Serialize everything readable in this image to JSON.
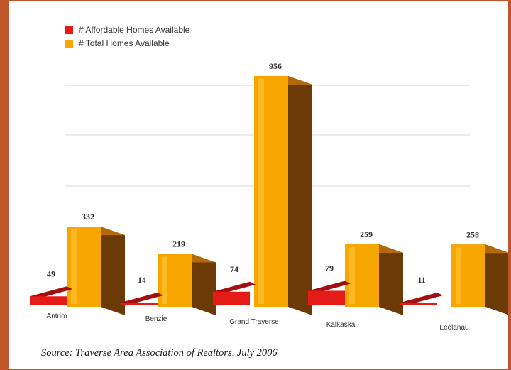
{
  "chart_data": {
    "type": "bar",
    "title": "",
    "xlabel": "",
    "ylabel": "",
    "ylim": [
      0,
      1000
    ],
    "grid": true,
    "legend_position": "top-left",
    "categories": [
      "Antrim",
      "Benzie",
      "Grand Traverse",
      "Kalkaska",
      "Leelanau"
    ],
    "series": [
      {
        "name": "# Affordable Homes Available",
        "values": [
          49,
          14,
          74,
          79,
          11
        ],
        "color": "#e41b17"
      },
      {
        "name": "# Total Homes Available",
        "values": [
          332,
          219,
          956,
          259,
          258
        ],
        "color": "#f7a600"
      }
    ],
    "source": "Source: Traverse Area Association of Realtors, July 2006"
  }
}
